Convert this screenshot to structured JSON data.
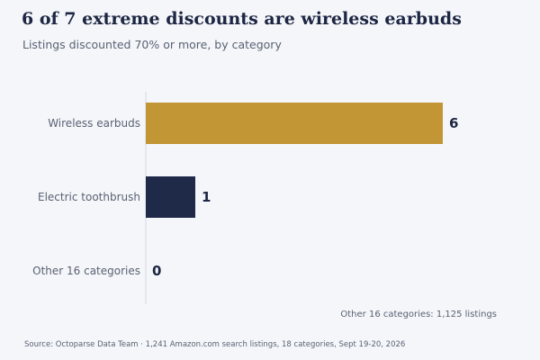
{
  "header": {
    "title": "6 of 7 extreme discounts are wireless earbuds",
    "subtitle": "Listings discounted 70% or more, by category"
  },
  "chart_data": {
    "type": "bar",
    "orientation": "horizontal",
    "categories": [
      "Wireless earbuds",
      "Electric toothbrush",
      "Other 16 categories"
    ],
    "values": [
      6,
      1,
      0
    ],
    "value_labels": [
      "6",
      "1",
      "0"
    ],
    "xlim": [
      0,
      6
    ],
    "grid": false,
    "colors": [
      "#c29535",
      "#1f2a48",
      "#1f2a48"
    ],
    "annotation": "Other 16 categories: 1,125 listings"
  },
  "footer": {
    "source": "Source: Octoparse Data Team · 1,241 Amazon.com search listings, 18 categories, Sept 19-20, 2026"
  },
  "colors": {
    "background": "#f4f6fa",
    "accent": "#c29535",
    "navy": "#1f2a48",
    "text_muted": "#5a6272"
  }
}
